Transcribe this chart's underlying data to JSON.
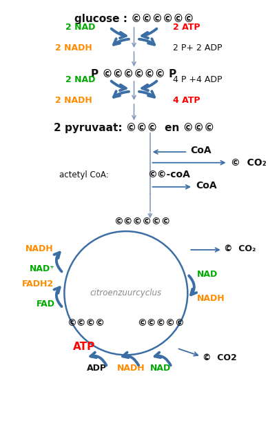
{
  "bg_color": "#ffffff",
  "C": "©",
  "green": "#00aa00",
  "orange": "#ff8c00",
  "red": "#ff0000",
  "black": "#111111",
  "blue": "#3a6ea5",
  "arrow_blue": "#4a7db5",
  "figsize": [
    3.89,
    6.39
  ],
  "dpi": 100,
  "xlim": [
    0,
    10
  ],
  "ylim": [
    0,
    16.4
  ]
}
